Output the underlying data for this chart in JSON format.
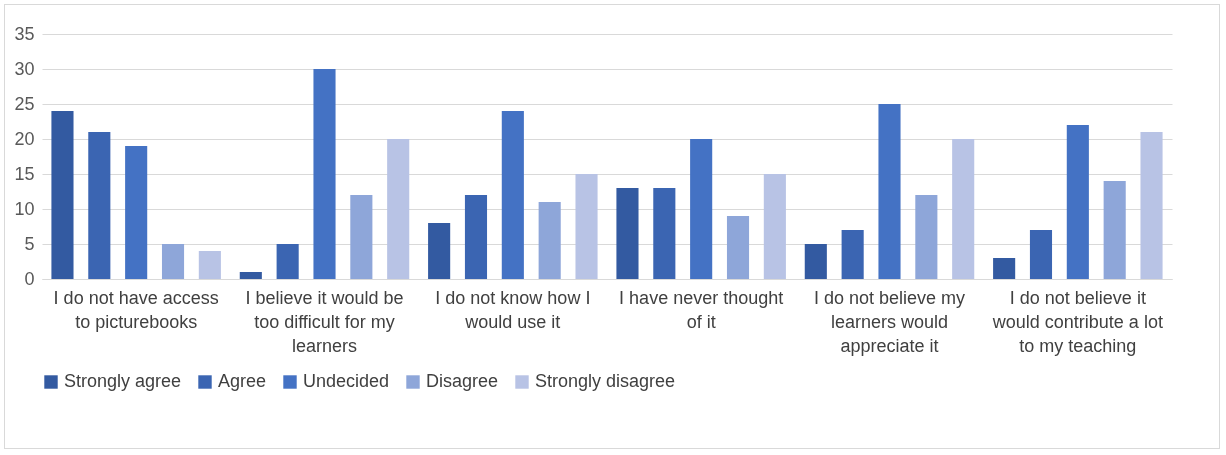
{
  "chart_data": {
    "type": "bar",
    "categories": [
      "I do not have access to picturebooks",
      "I believe it would be too difficult for my learners",
      "I do not know how I would use it",
      "I have never thought of it",
      "I do not believe my learners would appreciate it",
      "I do not believe it would contribute a lot to my teaching"
    ],
    "series": [
      {
        "name": "Strongly agree",
        "color": "#335aa1",
        "values": [
          24,
          1,
          8,
          13,
          5,
          3
        ]
      },
      {
        "name": "Agree",
        "color": "#3b65b2",
        "values": [
          21,
          5,
          12,
          13,
          7,
          7
        ]
      },
      {
        "name": "Undecided",
        "color": "#4472c4",
        "values": [
          19,
          30,
          24,
          20,
          25,
          22
        ]
      },
      {
        "name": "Disagree",
        "color": "#8ea6d9",
        "values": [
          5,
          12,
          11,
          9,
          12,
          14
        ]
      },
      {
        "name": "Strongly disagree",
        "color": "#b8c3e5",
        "values": [
          4,
          20,
          15,
          15,
          20,
          21
        ]
      }
    ],
    "ylim": [
      0,
      35
    ],
    "yticks": [
      0,
      5,
      10,
      15,
      20,
      25,
      30,
      35
    ],
    "grid": "y",
    "legend": "bottom"
  }
}
